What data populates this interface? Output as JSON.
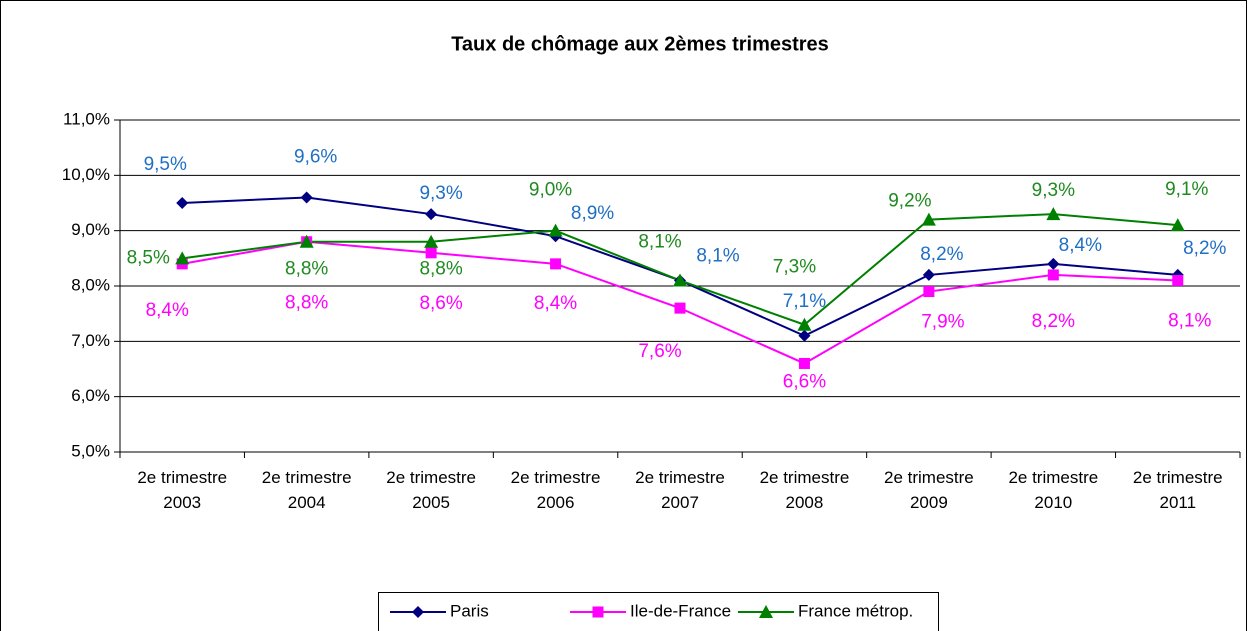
{
  "chart_data": {
    "type": "line",
    "title": "Taux de chômage aux 2èmes trimestres",
    "categories": [
      "2e trimestre 2003",
      "2e trimestre 2004",
      "2e trimestre 2005",
      "2e trimestre 2006",
      "2e trimestre 2007",
      "2e trimestre 2008",
      "2e trimestre 2009",
      "2e trimestre 2010",
      "2e trimestre 2011"
    ],
    "series": [
      {
        "name": "Paris",
        "color": "#000080",
        "label_color": "#1f6fc4",
        "marker": "diamond",
        "values": [
          9.5,
          9.6,
          9.3,
          8.9,
          8.1,
          7.1,
          8.2,
          8.4,
          8.2
        ],
        "value_labels": [
          "9,5%",
          "9,6%",
          "9,3%",
          "8,9%",
          "8,1%",
          "7,1%",
          "8,2%",
          "8,4%",
          "8,2%"
        ]
      },
      {
        "name": "Ile-de-France",
        "color": "#ff00ff",
        "label_color": "#ff00ff",
        "marker": "square",
        "values": [
          8.4,
          8.8,
          8.6,
          8.4,
          7.6,
          6.6,
          7.9,
          8.2,
          8.1
        ],
        "value_labels": [
          "8,4%",
          "8,8%",
          "8,6%",
          "8,4%",
          "7,6%",
          "6,6%",
          "7,9%",
          "8,2%",
          "8,1%"
        ]
      },
      {
        "name": "France métrop.",
        "color": "#008000",
        "label_color": "#1f8a1f",
        "marker": "triangle",
        "values": [
          8.5,
          8.8,
          8.8,
          9.0,
          8.1,
          7.3,
          9.2,
          9.3,
          9.1
        ],
        "value_labels": [
          "8,5%",
          "8,8%",
          "8,8%",
          "9,0%",
          "8,1%",
          "7,3%",
          "9,2%",
          "9,3%",
          "9,1%"
        ]
      }
    ],
    "ylim": [
      5,
      11
    ],
    "yticks": [
      {
        "value": 5,
        "label": "5,0%"
      },
      {
        "value": 6,
        "label": "6,0%"
      },
      {
        "value": 7,
        "label": "7,0%"
      },
      {
        "value": 8,
        "label": "8,0%"
      },
      {
        "value": 9,
        "label": "9,0%"
      },
      {
        "value": 10,
        "label": "10,0%"
      },
      {
        "value": 11,
        "label": "11,0%"
      }
    ],
    "grid": true,
    "legend": "bottom"
  }
}
